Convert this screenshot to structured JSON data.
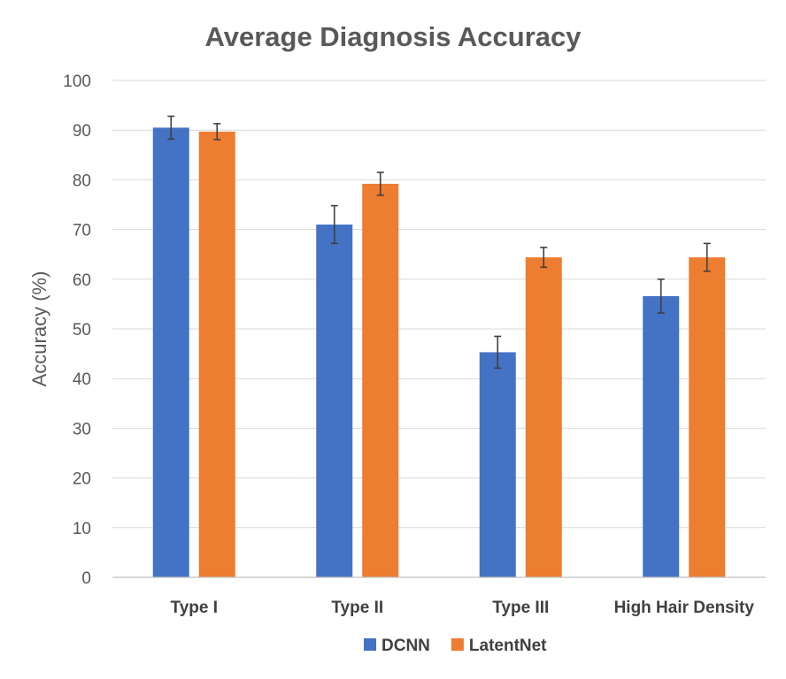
{
  "chart_data": {
    "type": "bar",
    "title": "Average Diagnosis Accuracy",
    "xlabel": "",
    "ylabel": "Accuracy (%)",
    "ylim": [
      0,
      100
    ],
    "yticks": [
      0,
      10,
      20,
      30,
      40,
      50,
      60,
      70,
      80,
      90,
      100
    ],
    "grid": true,
    "legend_position": "bottom",
    "categories": [
      "Type I",
      "Type II",
      "Type III",
      "High Hair Density"
    ],
    "series": [
      {
        "name": "DCNN",
        "color": "#4472C4",
        "values": [
          90.5,
          71.0,
          45.3,
          56.6
        ],
        "error": [
          2.3,
          3.8,
          3.2,
          3.4
        ]
      },
      {
        "name": "LatentNet",
        "color": "#ED7D31",
        "values": [
          89.7,
          79.2,
          64.4,
          64.4
        ],
        "error": [
          1.6,
          2.3,
          2.0,
          2.8
        ]
      }
    ]
  }
}
